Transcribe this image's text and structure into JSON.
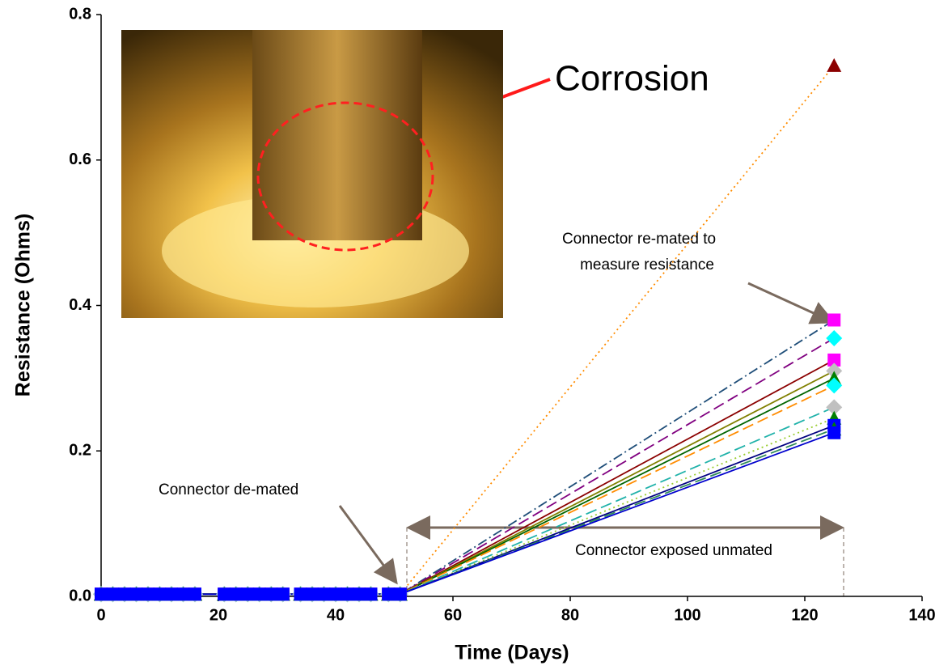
{
  "chart_data": {
    "type": "line",
    "x_label": "Time (Days)",
    "y_label": "Resistance (Ohms)",
    "xlim": [
      0,
      140
    ],
    "ylim": [
      0,
      0.8
    ],
    "xticks": [
      0,
      20,
      40,
      60,
      80,
      100,
      120,
      140
    ],
    "yticks": [
      {
        "value": 0,
        "label": "0.0"
      },
      0.2,
      0.4,
      0.6,
      0.8
    ],
    "x": [
      0,
      2,
      4,
      6,
      8,
      10,
      12,
      14,
      16,
      21,
      23,
      25,
      27,
      29,
      31,
      34,
      36,
      38,
      40,
      42,
      44,
      46,
      49,
      51,
      125
    ],
    "series": [
      {
        "color": "#ff8c00",
        "marker": "triangle",
        "marker_color": "#8b0000",
        "dash": "dotted",
        "values": [
          0.003,
          0.003,
          0.003,
          0.003,
          0.003,
          0.003,
          0.003,
          0.003,
          0.003,
          0.003,
          0.003,
          0.003,
          0.003,
          0.003,
          0.003,
          0.003,
          0.003,
          0.003,
          0.003,
          0.003,
          0.003,
          0.003,
          0.003,
          0.003,
          0.73
        ]
      },
      {
        "color": "#1f4e79",
        "marker": "square",
        "marker_color": "#ff00ff",
        "dash": "dashdot",
        "values": [
          0.003,
          0.003,
          0.003,
          0.003,
          0.003,
          0.003,
          0.003,
          0.003,
          0.003,
          0.003,
          0.003,
          0.003,
          0.003,
          0.003,
          0.003,
          0.003,
          0.003,
          0.003,
          0.003,
          0.003,
          0.003,
          0.003,
          0.003,
          0.003,
          0.38
        ]
      },
      {
        "color": "#800080",
        "marker": "diamond",
        "marker_color": "#00ffff",
        "dash": "dashed",
        "values": [
          0.003,
          0.003,
          0.003,
          0.003,
          0.003,
          0.003,
          0.003,
          0.003,
          0.003,
          0.003,
          0.003,
          0.003,
          0.003,
          0.003,
          0.003,
          0.003,
          0.003,
          0.003,
          0.003,
          0.003,
          0.003,
          0.003,
          0.003,
          0.003,
          0.355
        ]
      },
      {
        "color": "#8b0000",
        "marker": "square",
        "marker_color": "#ff00ff",
        "dash": "solid",
        "values": [
          0.003,
          0.003,
          0.003,
          0.003,
          0.003,
          0.003,
          0.003,
          0.003,
          0.003,
          0.003,
          0.003,
          0.003,
          0.003,
          0.003,
          0.003,
          0.003,
          0.003,
          0.003,
          0.003,
          0.003,
          0.003,
          0.003,
          0.003,
          0.003,
          0.325
        ]
      },
      {
        "color": "#808000",
        "marker": "diamond",
        "marker_color": "#c0c0c0",
        "dash": "solid",
        "values": [
          0.003,
          0.003,
          0.003,
          0.003,
          0.003,
          0.003,
          0.003,
          0.003,
          0.003,
          0.003,
          0.003,
          0.003,
          0.003,
          0.003,
          0.003,
          0.003,
          0.003,
          0.003,
          0.003,
          0.003,
          0.003,
          0.003,
          0.003,
          0.003,
          0.31
        ]
      },
      {
        "color": "#006400",
        "marker": "triangle",
        "marker_color": "#008000",
        "dash": "solid",
        "values": [
          0.003,
          0.003,
          0.003,
          0.003,
          0.003,
          0.003,
          0.003,
          0.003,
          0.003,
          0.003,
          0.003,
          0.003,
          0.003,
          0.003,
          0.003,
          0.003,
          0.003,
          0.003,
          0.003,
          0.003,
          0.003,
          0.003,
          0.003,
          0.003,
          0.3
        ]
      },
      {
        "color": "#ff8c00",
        "marker": "diamond",
        "marker_color": "#00ffff",
        "dash": "dashed",
        "values": [
          0.003,
          0.003,
          0.003,
          0.003,
          0.003,
          0.003,
          0.003,
          0.003,
          0.003,
          0.003,
          0.003,
          0.003,
          0.003,
          0.003,
          0.003,
          0.003,
          0.003,
          0.003,
          0.003,
          0.003,
          0.003,
          0.003,
          0.003,
          0.003,
          0.29
        ]
      },
      {
        "color": "#20b2aa",
        "marker": "diamond",
        "marker_color": "#c0c0c0",
        "dash": "dashed",
        "values": [
          0.003,
          0.003,
          0.003,
          0.003,
          0.003,
          0.003,
          0.003,
          0.003,
          0.003,
          0.003,
          0.003,
          0.003,
          0.003,
          0.003,
          0.003,
          0.003,
          0.003,
          0.003,
          0.003,
          0.003,
          0.003,
          0.003,
          0.003,
          0.003,
          0.26
        ]
      },
      {
        "color": "#9acd32",
        "marker": "triangle",
        "marker_color": "#008000",
        "dash": "dotted",
        "values": [
          0.003,
          0.003,
          0.003,
          0.003,
          0.003,
          0.003,
          0.003,
          0.003,
          0.003,
          0.003,
          0.003,
          0.003,
          0.003,
          0.003,
          0.003,
          0.003,
          0.003,
          0.003,
          0.003,
          0.003,
          0.003,
          0.003,
          0.003,
          0.003,
          0.245
        ]
      },
      {
        "color": "#000080",
        "marker": "square",
        "marker_color": "#0000ff",
        "dash": "solid",
        "values": [
          0.003,
          0.003,
          0.003,
          0.003,
          0.003,
          0.003,
          0.003,
          0.003,
          0.003,
          0.003,
          0.003,
          0.003,
          0.003,
          0.003,
          0.003,
          0.003,
          0.003,
          0.003,
          0.003,
          0.003,
          0.003,
          0.003,
          0.003,
          0.003,
          0.235
        ]
      },
      {
        "color": "#2e8b57",
        "marker": "triangle",
        "marker_color": "#008000",
        "dash": "dashed",
        "values": [
          0.003,
          0.003,
          0.003,
          0.003,
          0.003,
          0.003,
          0.003,
          0.003,
          0.003,
          0.003,
          0.003,
          0.003,
          0.003,
          0.003,
          0.003,
          0.003,
          0.003,
          0.003,
          0.003,
          0.003,
          0.003,
          0.003,
          0.003,
          0.003,
          0.23
        ]
      },
      {
        "color": "#0000cd",
        "marker": "square",
        "marker_color": "#0000ff",
        "dash": "solid",
        "values": [
          0.003,
          0.003,
          0.003,
          0.003,
          0.003,
          0.003,
          0.003,
          0.003,
          0.003,
          0.003,
          0.003,
          0.003,
          0.003,
          0.003,
          0.003,
          0.003,
          0.003,
          0.003,
          0.003,
          0.003,
          0.003,
          0.003,
          0.003,
          0.003,
          0.225
        ]
      }
    ],
    "annotations": {
      "remated": [
        "Connector re-mated to",
        "measure resistance"
      ],
      "demated": "Connector de-mated",
      "unmated": "Connector exposed unmated",
      "photo": "Corrosion"
    }
  }
}
